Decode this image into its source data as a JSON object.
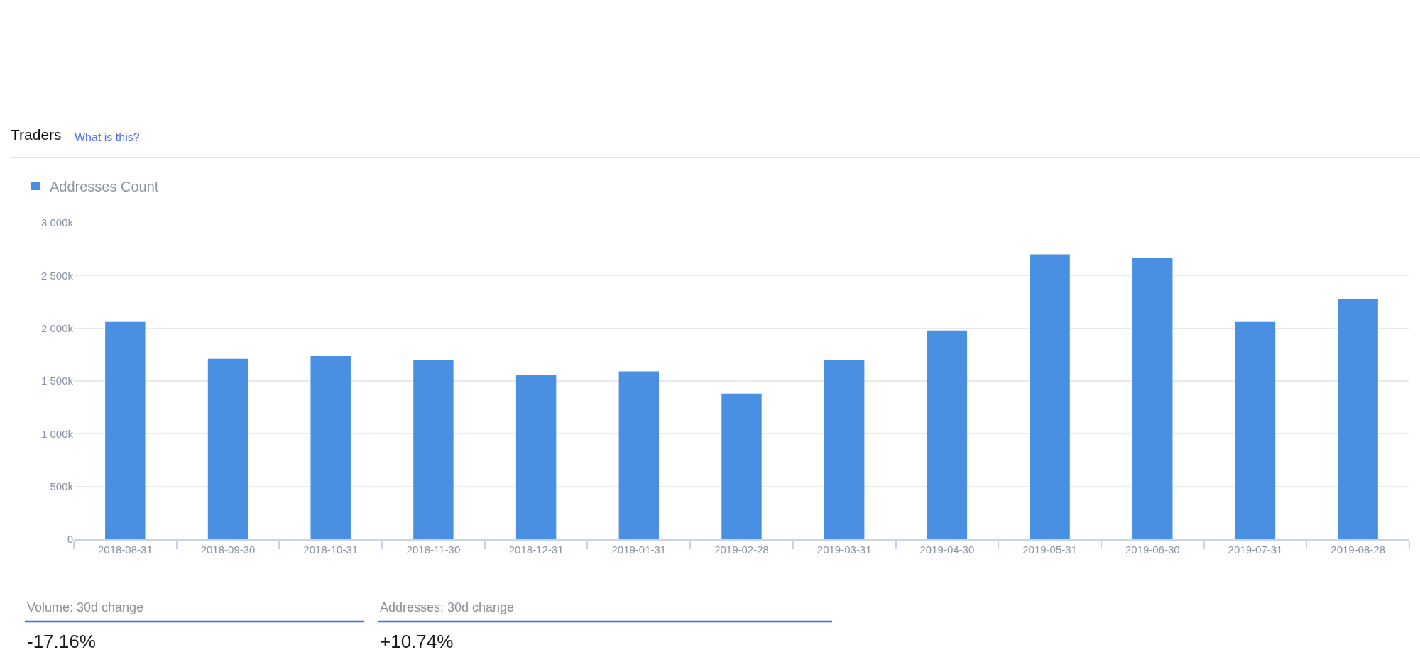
{
  "chart_data": {
    "type": "bar",
    "title": "Traders",
    "subtitle": "What is this?",
    "categories": [
      "2018-08-31",
      "2018-09-30",
      "2018-10-31",
      "2018-11-30",
      "2018-12-31",
      "2019-01-31",
      "2019-02-28",
      "2019-03-31",
      "2019-04-30",
      "2019-05-31",
      "2019-06-30",
      "2019-07-31",
      "2019-08-28"
    ],
    "series": [
      {
        "name": "Addresses Count",
        "color": "#4a90e2",
        "values": [
          2060000,
          1710000,
          1735000,
          1700000,
          1560000,
          1590000,
          1380000,
          1700000,
          1980000,
          2700000,
          2670000,
          2060000,
          2280000
        ]
      }
    ],
    "ylim": [
      0,
      3000000
    ],
    "yticks": [
      0,
      {
        "value": 500000,
        "label": "500k"
      },
      {
        "value": 1000000,
        "label": "1 000k"
      },
      {
        "value": 1500000,
        "label": "1 500k"
      },
      {
        "value": 2000000,
        "label": "2 000k"
      },
      {
        "value": 2500000,
        "label": "2 500k"
      },
      {
        "value": 3000000,
        "label": "3 000k"
      }
    ],
    "grid": "y",
    "legend": "top left",
    "annotations": [
      "Volume: 30d change",
      "-17.16%",
      "Addresses: 30d change",
      "+10.74%"
    ]
  }
}
